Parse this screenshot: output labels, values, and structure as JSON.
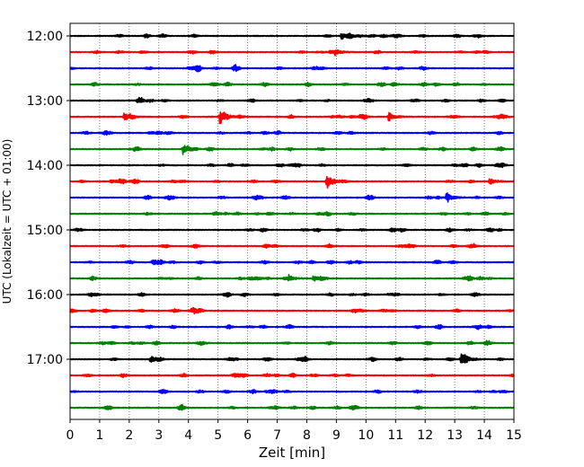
{
  "chart_data": {
    "type": "line",
    "title": "",
    "xlabel": "Zeit  [min]",
    "ylabel": "UTC (Lokalzeit = UTC + 01:00)",
    "xlim": [
      0,
      15
    ],
    "x_ticks": [
      0,
      1,
      2,
      3,
      4,
      5,
      6,
      7,
      8,
      9,
      10,
      11,
      12,
      13,
      14,
      15
    ],
    "x_tick_labels": [
      "0",
      "1",
      "2",
      "3",
      "4",
      "5",
      "6",
      "7",
      "8",
      "9",
      "10",
      "11",
      "12",
      "13",
      "14",
      "15"
    ],
    "y_tick_labels": [
      "12:00",
      "13:00",
      "14:00",
      "15:00",
      "16:00",
      "17:00"
    ],
    "grid": "vertical dotted",
    "legend": "none",
    "trace_colors": [
      "#000000",
      "#ff0000",
      "#0000ff",
      "#008000"
    ],
    "trace_count": 24,
    "trace_interval_min": 15,
    "first_trace_start": "12:00",
    "events": [
      {
        "trace": 0,
        "x": 9.2,
        "amp": 0.35
      },
      {
        "trace": 5,
        "x": 5.1,
        "amp": 0.9
      },
      {
        "trace": 5,
        "x": 10.8,
        "amp": 0.45
      },
      {
        "trace": 5,
        "x": 1.85,
        "amp": 0.4
      },
      {
        "trace": 7,
        "x": 3.85,
        "amp": 0.6
      },
      {
        "trace": 9,
        "x": 8.7,
        "amp": 0.85
      },
      {
        "trace": 9,
        "x": 14.2,
        "amp": 0.3
      },
      {
        "trace": 10,
        "x": 12.75,
        "amp": 0.45
      },
      {
        "trace": 14,
        "x": 2.8,
        "amp": 0.25
      },
      {
        "trace": 15,
        "x": 8.25,
        "amp": 0.35
      },
      {
        "trace": 15,
        "x": 7.4,
        "amp": 0.3
      },
      {
        "trace": 20,
        "x": 13.25,
        "amp": 1.0
      },
      {
        "trace": 20,
        "x": 2.75,
        "amp": 0.25
      },
      {
        "trace": 1,
        "x": 9.0,
        "amp": 0.3
      }
    ]
  }
}
